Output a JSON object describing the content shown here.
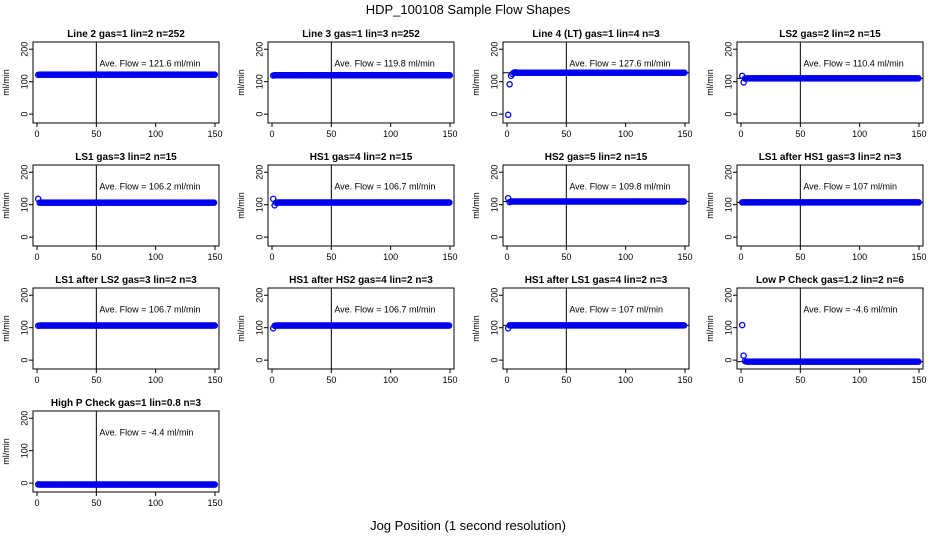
{
  "title": "HDP_100108  Sample Flow Shapes",
  "xlabel": "Jog Position (1 second resolution)",
  "colors": {
    "points": "#0000ee",
    "axis": "#000000"
  },
  "chart_data": [
    {
      "type": "scatter",
      "title": "Line 2 gas=1 lin=2 n=252",
      "ylabel": "ml/min",
      "xlim": [
        0,
        150
      ],
      "ylim": [
        -15,
        210
      ],
      "xticks": [
        0,
        50,
        100,
        150
      ],
      "yticks": [
        0,
        100,
        200
      ],
      "annotation": "Ave. Flow =  121.6  ml/min",
      "vline": 50,
      "hline": null,
      "start_y": [
        121
      ],
      "level": 121.6,
      "spike": null
    },
    {
      "type": "scatter",
      "title": "Line 3 gas=1 lin=3 n=252",
      "ylabel": "ml/min",
      "xlim": [
        0,
        150
      ],
      "ylim": [
        -15,
        210
      ],
      "xticks": [
        0,
        50,
        100,
        150
      ],
      "yticks": [
        0,
        100,
        200
      ],
      "annotation": "Ave. Flow =  119.8  ml/min",
      "vline": 50,
      "hline": null,
      "start_y": [
        119
      ],
      "level": 119.8,
      "spike": null
    },
    {
      "type": "scatter",
      "title": "Line 4 (LT) gas=1 lin=4 n=3",
      "ylabel": "ml/min",
      "xlim": [
        0,
        150
      ],
      "ylim": [
        -15,
        210
      ],
      "xticks": [
        0,
        50,
        100,
        150
      ],
      "yticks": [
        0,
        100,
        200
      ],
      "annotation": "Ave. Flow =  127.6  ml/min",
      "vline": 50,
      "hline": [
        127.6
      ],
      "start_y": [
        -2,
        92,
        118,
        124,
        128,
        129
      ],
      "level": 127.6,
      "spike": null
    },
    {
      "type": "scatter",
      "title": "LS2 gas=2 lin=2 n=15",
      "ylabel": "ml/min",
      "xlim": [
        0,
        150
      ],
      "ylim": [
        -15,
        210
      ],
      "xticks": [
        0,
        50,
        100,
        150
      ],
      "yticks": [
        0,
        100,
        200
      ],
      "annotation": "Ave. Flow =  110.4  ml/min",
      "vline": 50,
      "hline": [
        110.4
      ],
      "start_y": [
        118,
        98,
        110
      ],
      "level": 110.4,
      "spike": null
    },
    {
      "type": "scatter",
      "title": "LS1 gas=3 lin=2 n=15",
      "ylabel": "ml/min",
      "xlim": [
        0,
        150
      ],
      "ylim": [
        -15,
        210
      ],
      "xticks": [
        0,
        50,
        100,
        150
      ],
      "yticks": [
        0,
        100,
        200
      ],
      "annotation": "Ave. Flow =  106.2  ml/min",
      "vline": 50,
      "hline": null,
      "start_y": [
        118,
        106
      ],
      "level": 106.2,
      "spike": null
    },
    {
      "type": "scatter",
      "title": "HS1 gas=4 lin=2 n=15",
      "ylabel": "ml/min",
      "xlim": [
        0,
        150
      ],
      "ylim": [
        -15,
        210
      ],
      "xticks": [
        0,
        50,
        100,
        150
      ],
      "yticks": [
        0,
        100,
        200
      ],
      "annotation": "Ave. Flow =  106.7  ml/min",
      "vline": 50,
      "hline": null,
      "start_y": [
        118,
        98,
        106
      ],
      "level": 106.7,
      "spike": null
    },
    {
      "type": "scatter",
      "title": "HS2 gas=5 lin=2 n=15",
      "ylabel": "ml/min",
      "xlim": [
        0,
        150
      ],
      "ylim": [
        -15,
        210
      ],
      "xticks": [
        0,
        50,
        100,
        150
      ],
      "yticks": [
        0,
        100,
        200
      ],
      "annotation": "Ave. Flow =  109.8  ml/min",
      "vline": 50,
      "hline": [
        109.8
      ],
      "start_y": [
        120,
        108
      ],
      "level": 109.8,
      "spike": null
    },
    {
      "type": "scatter",
      "title": "LS1 after HS1 gas=3 lin=2 n=3",
      "ylabel": "ml/min",
      "xlim": [
        0,
        150
      ],
      "ylim": [
        -15,
        210
      ],
      "xticks": [
        0,
        50,
        100,
        150
      ],
      "yticks": [
        0,
        100,
        200
      ],
      "annotation": "Ave. Flow =  107  ml/min",
      "vline": 50,
      "hline": [
        107
      ],
      "start_y": [
        107
      ],
      "level": 107,
      "spike": null
    },
    {
      "type": "scatter",
      "title": "LS1 after LS2 gas=3 lin=2 n=3",
      "ylabel": "ml/min",
      "xlim": [
        0,
        150
      ],
      "ylim": [
        -15,
        210
      ],
      "xticks": [
        0,
        50,
        100,
        150
      ],
      "yticks": [
        0,
        100,
        200
      ],
      "annotation": "Ave. Flow =  106.7  ml/min",
      "vline": 50,
      "hline": null,
      "start_y": [
        106
      ],
      "level": 106.7,
      "spike": null
    },
    {
      "type": "scatter",
      "title": "HS1 after HS2 gas=4 lin=2 n=3",
      "ylabel": "ml/min",
      "xlim": [
        0,
        150
      ],
      "ylim": [
        -15,
        210
      ],
      "xticks": [
        0,
        50,
        100,
        150
      ],
      "yticks": [
        0,
        100,
        200
      ],
      "annotation": "Ave. Flow =  106.7  ml/min",
      "vline": 50,
      "hline": null,
      "start_y": [
        98,
        106
      ],
      "level": 106.7,
      "spike": null
    },
    {
      "type": "scatter",
      "title": "HS1 after LS1 gas=4 lin=2 n=3",
      "ylabel": "ml/min",
      "xlim": [
        0,
        150
      ],
      "ylim": [
        -15,
        210
      ],
      "xticks": [
        0,
        50,
        100,
        150
      ],
      "yticks": [
        0,
        100,
        200
      ],
      "annotation": "Ave. Flow =  107  ml/min",
      "vline": 50,
      "hline": [
        107
      ],
      "start_y": [
        98,
        107
      ],
      "level": 107,
      "spike": null
    },
    {
      "type": "scatter",
      "title": "Low P Check gas=1.2 lin=2 n=6",
      "ylabel": "ml/min",
      "xlim": [
        0,
        150
      ],
      "ylim": [
        -15,
        210
      ],
      "xticks": [
        0,
        50,
        100,
        150
      ],
      "yticks": [
        0,
        100,
        200
      ],
      "annotation": "Ave. Flow =  -4.6  ml/min",
      "vline": 50,
      "hline": [
        -4.6
      ],
      "start_y": [
        108,
        14,
        -3
      ],
      "level": -4.6,
      "spike": null
    },
    {
      "type": "scatter",
      "title": "High P Check gas=1 lin=0.8 n=3",
      "ylabel": "ml/min",
      "xlim": [
        0,
        150
      ],
      "ylim": [
        -15,
        210
      ],
      "xticks": [
        0,
        50,
        100,
        150
      ],
      "yticks": [
        0,
        100,
        200
      ],
      "annotation": "Ave. Flow =  -4.4  ml/min",
      "vline": 50,
      "hline": null,
      "start_y": [
        -4
      ],
      "level": -4.4,
      "spike": null
    }
  ]
}
